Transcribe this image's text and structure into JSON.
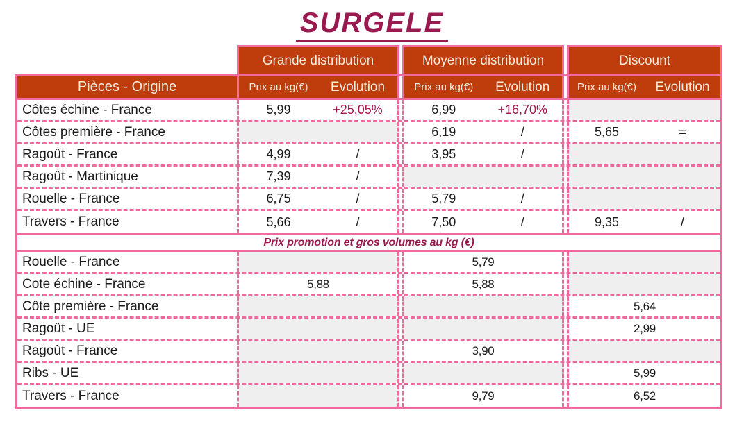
{
  "title": "SURGELE",
  "columns": {
    "origin": "Pièces - Origine",
    "price": "Prix au kg(€)",
    "evolution": "Evolution",
    "groups": [
      "Grande distribution",
      "Moyenne distribution",
      "Discount"
    ]
  },
  "promo_header": "Prix promotion et gros volumes au kg (€)",
  "chart_data": {
    "type": "table",
    "title": "SURGELE",
    "groups": [
      "Grande distribution",
      "Moyenne distribution",
      "Discount"
    ],
    "columns_per_group": [
      "Prix au kg(€)",
      "Evolution"
    ],
    "rows": [
      {
        "label": "Côtes échine - France",
        "cells": [
          {
            "price": "5,99",
            "evolution": "+25,05%",
            "red": true
          },
          {
            "price": "6,99",
            "evolution": "+16,70%",
            "red": true
          },
          null
        ]
      },
      {
        "label": "Côtes première - France",
        "cells": [
          null,
          {
            "price": "6,19",
            "evolution": "/"
          },
          {
            "price": "5,65",
            "evolution": "="
          }
        ]
      },
      {
        "label": "Ragoût - France",
        "cells": [
          {
            "price": "4,99",
            "evolution": "/"
          },
          {
            "price": "3,95",
            "evolution": "/"
          },
          null
        ]
      },
      {
        "label": "Ragoût - Martinique",
        "cells": [
          {
            "price": "7,39",
            "evolution": "/"
          },
          null,
          null
        ]
      },
      {
        "label": "Rouelle - France",
        "cells": [
          {
            "price": "6,75",
            "evolution": "/"
          },
          {
            "price": "5,79",
            "evolution": "/"
          },
          null
        ]
      },
      {
        "label": "Travers - France",
        "cells": [
          {
            "price": "5,66",
            "evolution": "/"
          },
          {
            "price": "7,50",
            "evolution": "/"
          },
          {
            "price": "9,35",
            "evolution": "/"
          }
        ]
      }
    ],
    "promo_section": {
      "header": "Prix promotion et gros volumes au kg (€)",
      "rows": [
        {
          "label": "Rouelle - France",
          "cells": [
            null,
            "5,79",
            null
          ]
        },
        {
          "label": "Cote échine - France",
          "cells": [
            "5,88",
            "5,88",
            null
          ]
        },
        {
          "label": "Côte première - France",
          "cells": [
            null,
            null,
            "5,64"
          ]
        },
        {
          "label": "Ragoût - UE",
          "cells": [
            null,
            null,
            "2,99"
          ]
        },
        {
          "label": "Ragoût - France",
          "cells": [
            null,
            "3,90",
            null
          ]
        },
        {
          "label": "Ribs - UE",
          "cells": [
            null,
            null,
            "5,99"
          ]
        },
        {
          "label": "Travers - France",
          "cells": [
            null,
            "9,79",
            "6,52"
          ]
        }
      ]
    }
  },
  "colors": {
    "header_bg": "#BF3D0C",
    "header_text": "#F3EBDB",
    "border_pink": "#EF6B9E",
    "title_maroon": "#9A1A4F",
    "evolution_red": "#A8164B",
    "empty_cell_gray": "#EFEFEF"
  }
}
